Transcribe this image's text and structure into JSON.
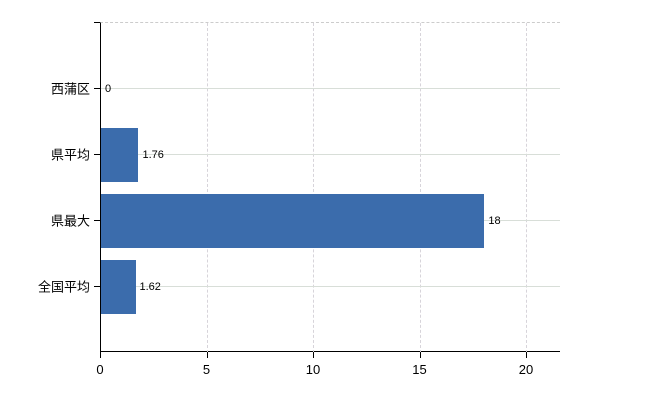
{
  "chart_data": {
    "type": "bar",
    "orientation": "horizontal",
    "title": "",
    "xlabel": "",
    "ylabel": "",
    "categories": [
      "西蒲区",
      "県平均",
      "県最大",
      "全国平均"
    ],
    "values": [
      0,
      1.76,
      18,
      1.62
    ],
    "value_labels": [
      "0",
      "1.76",
      "18",
      "1.62"
    ],
    "xticks": [
      0,
      5,
      10,
      15,
      20
    ],
    "xtick_labels": [
      "0",
      "5",
      "10",
      "15",
      "20"
    ],
    "xlim": [
      0,
      20
    ],
    "grid": "on",
    "legend": "none",
    "colors": {
      "bar": "#3b6cac",
      "axis": "#000000",
      "gridline_h": "#d8ded8",
      "gridline_v": "#d7d4da",
      "text": "#000000",
      "background": "#ffffff"
    }
  }
}
